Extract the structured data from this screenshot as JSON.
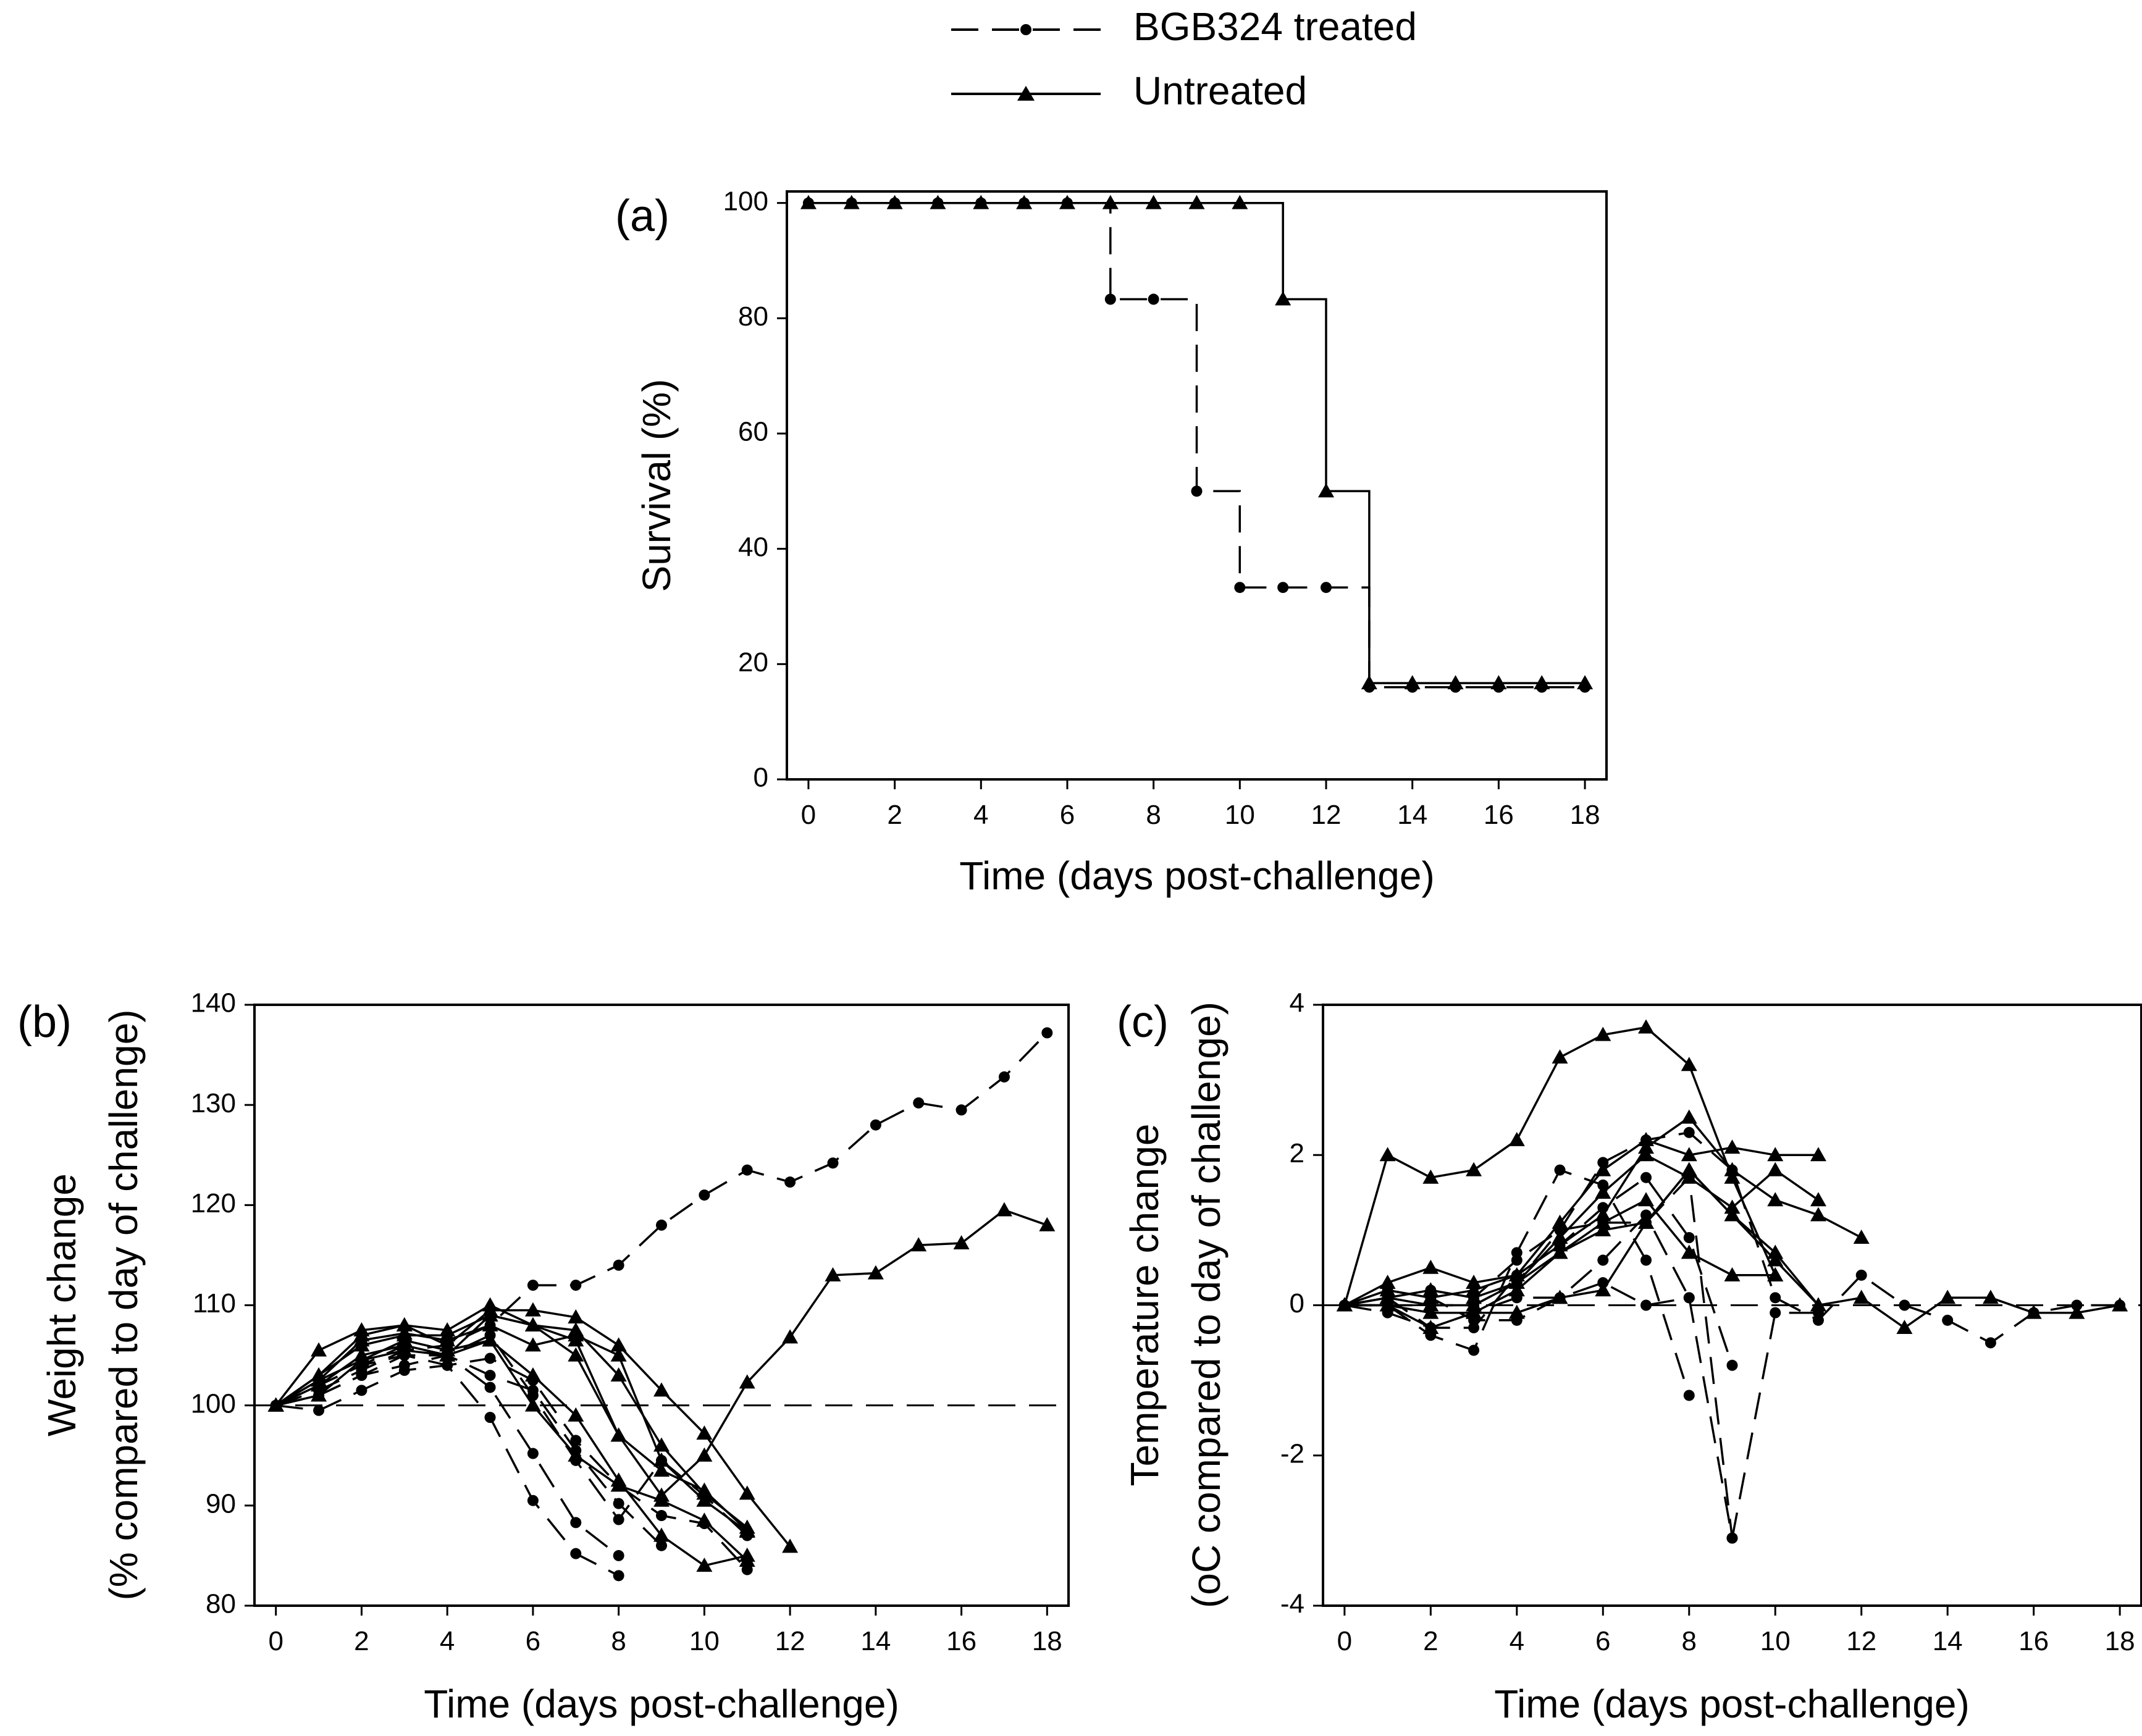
{
  "legend": {
    "entries": [
      {
        "label": "BGB324 treated",
        "style": "dashed",
        "marker": "circle"
      },
      {
        "label": "Untreated",
        "style": "solid",
        "marker": "triangle"
      }
    ]
  },
  "chart_data": [
    {
      "panel": "(a)",
      "type": "line",
      "step": true,
      "xlabel": "Time (days post-challenge)",
      "ylabel": "Survival (%)",
      "xlim": [
        -0.5,
        18.5
      ],
      "ylim": [
        0,
        102
      ],
      "xticks": [
        "0",
        "2",
        "4",
        "6",
        "8",
        "10",
        "12",
        "14",
        "16",
        "18"
      ],
      "yticks": [
        "0",
        "20",
        "40",
        "60",
        "80",
        "100"
      ],
      "series": [
        {
          "name": "BGB324 treated",
          "style": "dashed",
          "marker": "circle",
          "x": [
            0,
            1,
            2,
            3,
            4,
            5,
            6,
            7,
            8,
            9,
            10,
            11,
            12,
            13,
            14,
            15,
            16,
            17,
            18
          ],
          "y": [
            100,
            100,
            100,
            100,
            100,
            100,
            100,
            83.3,
            83.3,
            50,
            33.3,
            33.3,
            33.3,
            16,
            16,
            16,
            16,
            16,
            16
          ]
        },
        {
          "name": "Untreated",
          "style": "solid",
          "marker": "triangle",
          "x": [
            0,
            1,
            2,
            3,
            4,
            5,
            6,
            7,
            8,
            9,
            10,
            11,
            12,
            13,
            14,
            15,
            16,
            17,
            18
          ],
          "y": [
            100,
            100,
            100,
            100,
            100,
            100,
            100,
            100,
            100,
            100,
            100,
            83.3,
            50,
            16.7,
            16.7,
            16.7,
            16.7,
            16.7,
            16.7
          ]
        }
      ]
    },
    {
      "panel": "(b)",
      "type": "line",
      "xlabel": "Time (days post-challenge)",
      "ylabel": [
        "Weight change",
        "(% compared to day of challenge)"
      ],
      "xlim": [
        -0.5,
        18.5
      ],
      "ylim": [
        80,
        140
      ],
      "xticks": [
        "0",
        "2",
        "4",
        "6",
        "8",
        "10",
        "12",
        "14",
        "16",
        "18"
      ],
      "yticks": [
        "80",
        "90",
        "100",
        "110",
        "120",
        "130",
        "140"
      ],
      "reference_line": 100,
      "series": [
        {
          "group": "BGB324 treated",
          "style": "dashed",
          "marker": "circle",
          "x": [
            0,
            1,
            2,
            3,
            4,
            5,
            6,
            7,
            8,
            9,
            10,
            11,
            12,
            13,
            14,
            15,
            16,
            17,
            18
          ],
          "y": [
            100,
            101.5,
            103.5,
            105.5,
            106,
            108,
            112,
            112,
            114,
            118,
            121,
            123.5,
            122.3,
            124.2,
            128,
            130.2,
            129.5,
            132.8,
            137.2
          ]
        },
        {
          "group": "BGB324 treated",
          "style": "dashed",
          "marker": "circle",
          "x": [
            0,
            1,
            2,
            3,
            4,
            5,
            6,
            7,
            8
          ],
          "y": [
            100,
            101,
            103,
            105,
            104,
            98.8,
            90.5,
            85.2,
            83
          ]
        },
        {
          "group": "BGB324 treated",
          "style": "dashed",
          "marker": "circle",
          "x": [
            0,
            1,
            2,
            3,
            4,
            5,
            6,
            7,
            8
          ],
          "y": [
            100,
            102,
            104,
            105,
            105,
            101.8,
            95.2,
            88.3,
            85
          ]
        },
        {
          "group": "BGB324 treated",
          "style": "dashed",
          "marker": "circle",
          "x": [
            0,
            1,
            2,
            3,
            4,
            5,
            6,
            7,
            8,
            9
          ],
          "y": [
            100,
            101,
            103,
            104,
            105,
            103,
            101.5,
            95.5,
            90.2,
            86
          ]
        },
        {
          "group": "BGB324 treated",
          "style": "dashed",
          "marker": "circle",
          "x": [
            0,
            1,
            2,
            3,
            4,
            5,
            6,
            7,
            8,
            9,
            10,
            11
          ],
          "y": [
            100,
            99.5,
            101.5,
            103.5,
            104,
            104.7,
            102.5,
            96.5,
            92,
            89,
            88.2,
            83.6
          ]
        },
        {
          "group": "BGB324 treated",
          "style": "dashed",
          "marker": "circle",
          "x": [
            0,
            1,
            2,
            3,
            4,
            5,
            6,
            7,
            8,
            9,
            10,
            11
          ],
          "y": [
            100,
            102,
            104,
            106,
            105,
            107,
            101,
            94.5,
            88.6,
            94.5,
            91,
            87
          ]
        },
        {
          "group": "Untreated",
          "style": "solid",
          "marker": "triangle",
          "x": [
            0,
            1,
            2,
            3,
            4,
            5,
            6,
            7,
            8,
            9,
            10,
            11,
            12,
            13,
            14,
            15,
            16,
            17,
            18
          ],
          "y": [
            100,
            102.5,
            104.5,
            105.5,
            105,
            109,
            108,
            106.5,
            97,
            91,
            95,
            102.3,
            106.8,
            113,
            113.2,
            116,
            116.2,
            119.5,
            118
          ]
        },
        {
          "group": "Untreated",
          "style": "solid",
          "marker": "triangle",
          "x": [
            0,
            1,
            2,
            3,
            4,
            5,
            6,
            7,
            8,
            9,
            10,
            11
          ],
          "y": [
            100,
            105.5,
            107.5,
            108,
            107.5,
            110,
            108,
            105,
            97,
            93.5,
            91.5,
            87.5
          ]
        },
        {
          "group": "Untreated",
          "style": "solid",
          "marker": "triangle",
          "x": [
            0,
            1,
            2,
            3,
            4,
            5,
            6,
            7,
            8,
            9,
            10,
            11,
            12
          ],
          "y": [
            100,
            103,
            107,
            108,
            106,
            109.5,
            109.5,
            108.8,
            106,
            101.5,
            97.2,
            91.2,
            85.9
          ]
        },
        {
          "group": "Untreated",
          "style": "solid",
          "marker": "triangle",
          "x": [
            0,
            1,
            2,
            3,
            4,
            5,
            6,
            7,
            8,
            9,
            10,
            11
          ],
          "y": [
            100,
            103,
            106,
            107,
            107,
            109,
            108,
            107.5,
            103,
            96,
            91.2,
            87.8
          ]
        },
        {
          "group": "Untreated",
          "style": "solid",
          "marker": "triangle",
          "x": [
            0,
            1,
            2,
            3,
            4,
            5,
            6,
            7,
            8,
            9,
            10,
            11
          ],
          "y": [
            100,
            102.5,
            106.5,
            107.2,
            106.5,
            108,
            106,
            107,
            105,
            94.5,
            90.5,
            87.4
          ]
        },
        {
          "group": "Untreated",
          "style": "solid",
          "marker": "triangle",
          "x": [
            0,
            1,
            2,
            3,
            4,
            5,
            6,
            7,
            8,
            9,
            10,
            11
          ],
          "y": [
            100,
            102,
            105,
            106,
            105,
            106.5,
            103,
            99,
            92.5,
            87,
            84,
            85
          ]
        },
        {
          "group": "Untreated",
          "style": "solid",
          "marker": "triangle",
          "x": [
            0,
            1,
            2,
            3,
            4,
            5,
            6,
            7,
            8,
            9,
            10,
            11
          ],
          "y": [
            100,
            101,
            104.5,
            106.5,
            105.5,
            106.5,
            100,
            95,
            92,
            90.5,
            88.5,
            84.5
          ]
        }
      ]
    },
    {
      "panel": "(c)",
      "type": "line",
      "xlabel": "Time (days post-challenge)",
      "ylabel": [
        "Temperature change",
        "(oC compared to day of challenge)"
      ],
      "xlim": [
        -0.5,
        18.5
      ],
      "ylim": [
        -4,
        4
      ],
      "xticks": [
        "0",
        "2",
        "4",
        "6",
        "8",
        "10",
        "12",
        "14",
        "16",
        "18"
      ],
      "yticks": [
        "-4",
        "-2",
        "0",
        "2",
        "4"
      ],
      "reference_line": 0,
      "series": [
        {
          "group": "BGB324 treated",
          "style": "dashed",
          "marker": "circle",
          "x": [
            0,
            1,
            2,
            3,
            4,
            5,
            6,
            7,
            8,
            9,
            10,
            11,
            12,
            13,
            14,
            15,
            16,
            17,
            18
          ],
          "y": [
            0,
            0,
            0,
            0,
            0.3,
            1,
            1.9,
            2.2,
            2.3,
            1.8,
            0.1,
            -0.2,
            0.4,
            0,
            -0.2,
            -0.5,
            -0.1,
            0,
            0
          ]
        },
        {
          "group": "BGB324 treated",
          "style": "dashed",
          "marker": "circle",
          "x": [
            0,
            1,
            2,
            3,
            4,
            5,
            6,
            7,
            8,
            9
          ],
          "y": [
            0,
            0.1,
            0.2,
            0.1,
            0.6,
            1,
            1.1,
            1.1,
            1.7,
            -3.1
          ]
        },
        {
          "group": "BGB324 treated",
          "style": "dashed",
          "marker": "circle",
          "x": [
            0,
            1,
            2,
            3,
            4,
            5,
            6,
            7,
            8
          ],
          "y": [
            0,
            0,
            -0.4,
            -0.6,
            0.7,
            1.8,
            1.6,
            0.6,
            -1.2
          ]
        },
        {
          "group": "BGB324 treated",
          "style": "dashed",
          "marker": "circle",
          "x": [
            0,
            1,
            2,
            3,
            4,
            5,
            6,
            7,
            8,
            9
          ],
          "y": [
            0,
            -0.1,
            -0.3,
            -0.3,
            0.4,
            0.8,
            1.3,
            1.7,
            0.9,
            -0.8
          ]
        },
        {
          "group": "BGB324 treated",
          "style": "dashed",
          "marker": "circle",
          "x": [
            0,
            1,
            2,
            3,
            4,
            5,
            6,
            7,
            8,
            9,
            10,
            11
          ],
          "y": [
            0,
            0.1,
            -0.3,
            -0.1,
            0.1,
            0.1,
            0.3,
            0,
            0.1,
            -3.1,
            -0.1,
            -0.1
          ]
        },
        {
          "group": "BGB324 treated",
          "style": "dashed",
          "marker": "circle",
          "x": [
            0,
            1,
            2,
            3,
            4,
            5,
            6,
            7,
            8
          ],
          "y": [
            0,
            0.2,
            0.1,
            -0.2,
            -0.2,
            0.1,
            0.6,
            1.2,
            0.1
          ]
        },
        {
          "group": "Untreated",
          "style": "solid",
          "marker": "triangle",
          "x": [
            0,
            1,
            2,
            3,
            4,
            5,
            6,
            7,
            8,
            9,
            10
          ],
          "y": [
            0,
            2,
            1.7,
            1.8,
            2.2,
            3.3,
            3.6,
            3.7,
            3.2,
            1.7,
            0.4
          ]
        },
        {
          "group": "Untreated",
          "style": "solid",
          "marker": "triangle",
          "x": [
            0,
            1,
            2,
            3,
            4,
            5,
            6,
            7,
            8,
            9,
            10,
            11
          ],
          "y": [
            0,
            0.3,
            0.5,
            0.3,
            0.4,
            1.1,
            1.8,
            2.2,
            2.0,
            2.1,
            2.0,
            2.0
          ]
        },
        {
          "group": "Untreated",
          "style": "solid",
          "marker": "triangle",
          "x": [
            0,
            1,
            2,
            3,
            4,
            5,
            6,
            7,
            8,
            9,
            10,
            11,
            12
          ],
          "y": [
            0,
            0.2,
            0.1,
            0.2,
            0.4,
            0.8,
            1.2,
            2.1,
            2.5,
            1.8,
            1.4,
            1.2,
            0.9
          ]
        },
        {
          "group": "Untreated",
          "style": "solid",
          "marker": "triangle",
          "x": [
            0,
            1,
            2,
            3,
            4,
            5,
            6,
            7,
            8,
            9,
            10,
            11
          ],
          "y": [
            0,
            0.1,
            0.2,
            0.1,
            0.3,
            0.9,
            1.5,
            2.0,
            1.7,
            1.3,
            1.8,
            1.4
          ]
        },
        {
          "group": "Untreated",
          "style": "solid",
          "marker": "triangle",
          "x": [
            0,
            1,
            2,
            3,
            4,
            5,
            6,
            7,
            8,
            9,
            10,
            11,
            12,
            13,
            14,
            15,
            16,
            17,
            18
          ],
          "y": [
            0,
            0.1,
            0,
            0,
            0.3,
            0.7,
            1.0,
            1.1,
            1.8,
            1.2,
            0.7,
            0,
            0.1,
            -0.3,
            0.1,
            0.1,
            -0.1,
            -0.1,
            0
          ]
        },
        {
          "group": "Untreated",
          "style": "solid",
          "marker": "triangle",
          "x": [
            0,
            1,
            2,
            3,
            4,
            5,
            6,
            7,
            8,
            9,
            10
          ],
          "y": [
            0,
            0,
            -0.3,
            -0.1,
            0.2,
            0.7,
            1.1,
            1.4,
            0.7,
            0.4,
            0.4
          ]
        },
        {
          "group": "Untreated",
          "style": "solid",
          "marker": "triangle",
          "x": [
            0,
            1,
            2,
            3,
            4,
            5,
            6,
            7,
            8,
            9,
            10,
            11
          ],
          "y": [
            0,
            0,
            -0.1,
            -0.1,
            -0.1,
            0.1,
            0.2,
            1.1,
            1.8,
            1.2,
            0.6,
            0
          ]
        }
      ]
    }
  ]
}
